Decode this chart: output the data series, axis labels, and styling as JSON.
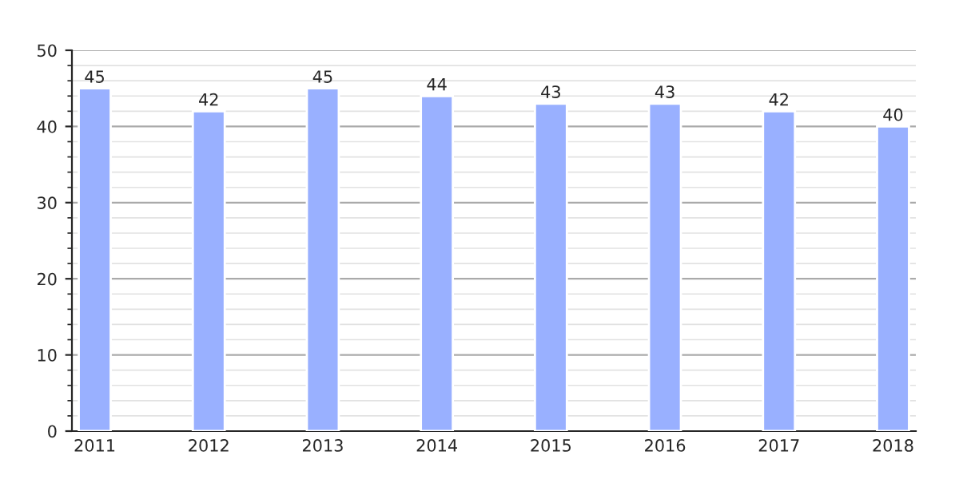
{
  "chart_data": {
    "type": "bar",
    "categories": [
      "2011",
      "2012",
      "2013",
      "2014",
      "2015",
      "2016",
      "2017",
      "2018"
    ],
    "values": [
      45,
      42,
      45,
      44,
      43,
      43,
      42,
      40
    ],
    "color": "#99b0ff",
    "ylim": [
      0,
      50
    ],
    "yticks": [
      0,
      10,
      20,
      30,
      40,
      50
    ],
    "grid": "y",
    "data_labels": true
  }
}
